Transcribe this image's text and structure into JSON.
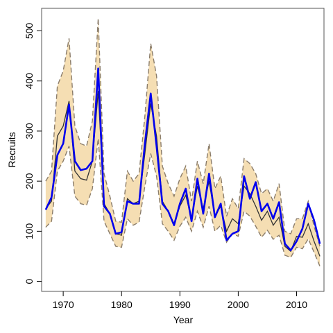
{
  "chart_data": {
    "type": "line",
    "title": "",
    "xlabel": "Year",
    "ylabel": "Recruits",
    "xlim": [
      1966.3,
      2014.7
    ],
    "ylim": [
      -20,
      545
    ],
    "xticks": [
      1970,
      1980,
      1990,
      2000,
      2010
    ],
    "yticks": [
      0,
      100,
      200,
      300,
      400,
      500
    ],
    "grid": false,
    "legend": "none",
    "colors": {
      "band_fill": "#f5deb3",
      "band_edge": "#8b7d6b",
      "median_line": "#333333",
      "observed_line": "#0000ee",
      "frame": "#555555"
    },
    "x": [
      1967,
      1968,
      1969,
      1970,
      1971,
      1972,
      1973,
      1974,
      1975,
      1976,
      1977,
      1978,
      1979,
      1980,
      1981,
      1982,
      1983,
      1984,
      1985,
      1986,
      1987,
      1988,
      1989,
      1990,
      1991,
      1992,
      1993,
      1994,
      1995,
      1996,
      1997,
      1998,
      1999,
      2000,
      2001,
      2002,
      2003,
      2004,
      2005,
      2006,
      2007,
      2008,
      2009,
      2010,
      2011,
      2012,
      2013,
      2014
    ],
    "series": [
      {
        "role": "upper",
        "values": [
          200,
          220,
          390,
          420,
          485,
          310,
          275,
          270,
          320,
          525,
          215,
          170,
          120,
          118,
          220,
          200,
          215,
          330,
          475,
          410,
          230,
          195,
          170,
          205,
          230,
          160,
          240,
          195,
          275,
          185,
          210,
          130,
          165,
          145,
          245,
          235,
          215,
          175,
          185,
          160,
          195,
          100,
          95,
          125,
          125,
          160,
          110,
          70
        ]
      },
      {
        "role": "median",
        "values": [
          145,
          160,
          290,
          310,
          360,
          220,
          205,
          202,
          240,
          380,
          155,
          135,
          95,
          92,
          165,
          155,
          160,
          255,
          355,
          290,
          160,
          140,
          115,
          150,
          172,
          125,
          190,
          145,
          200,
          130,
          150,
          100,
          125,
          115,
          190,
          175,
          150,
          122,
          140,
          112,
          128,
          70,
          60,
          90,
          88,
          115,
          80,
          50
        ]
      },
      {
        "role": "lower",
        "values": [
          108,
          120,
          220,
          240,
          270,
          170,
          155,
          152,
          185,
          285,
          120,
          95,
          70,
          68,
          125,
          112,
          118,
          190,
          255,
          210,
          115,
          100,
          82,
          110,
          128,
          100,
          140,
          108,
          150,
          100,
          112,
          78,
          95,
          90,
          140,
          130,
          110,
          88,
          102,
          84,
          92,
          52,
          48,
          68,
          65,
          85,
          58,
          30
        ]
      },
      {
        "role": "observed",
        "values": [
          143,
          168,
          252,
          275,
          353,
          240,
          222,
          225,
          240,
          425,
          150,
          135,
          95,
          98,
          160,
          155,
          155,
          275,
          375,
          270,
          155,
          140,
          112,
          155,
          185,
          120,
          205,
          135,
          215,
          128,
          155,
          82,
          95,
          100,
          210,
          165,
          198,
          140,
          155,
          125,
          158,
          75,
          62,
          80,
          105,
          155,
          122,
          75
        ]
      }
    ]
  }
}
